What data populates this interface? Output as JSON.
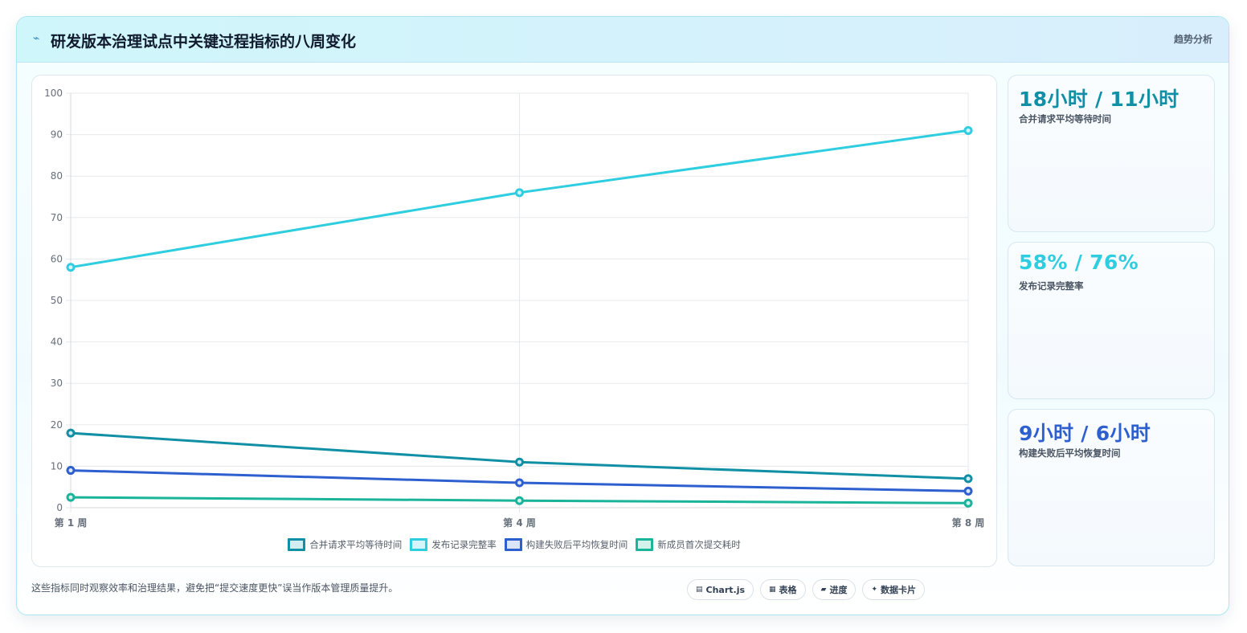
{
  "header": {
    "icon": "lightning-icon",
    "title": "研发版本治理试点中关键过程指标的八周变化",
    "tag": "趋势分析"
  },
  "chart_data": {
    "type": "line",
    "title": "",
    "xlabel": "",
    "ylabel": "",
    "categories": [
      "第 1 周",
      "第 4 周",
      "第 8 周"
    ],
    "ylim": [
      0,
      100
    ],
    "yticks": [
      0,
      10,
      20,
      30,
      40,
      50,
      60,
      70,
      80,
      90,
      100
    ],
    "grid": true,
    "legend_position": "bottom",
    "series": [
      {
        "name": "合并请求平均等待时间",
        "values": [
          18,
          11,
          7
        ],
        "color": "#1190a5",
        "fill": "#d1eef3"
      },
      {
        "name": "发布记录完整率",
        "values": [
          58,
          76,
          91
        ],
        "color": "#2ecde0",
        "fill": "#d4f6fa"
      },
      {
        "name": "构建失败后平均恢复时间",
        "values": [
          9,
          6,
          4
        ],
        "color": "#2d5fcf",
        "fill": "#dbe5fa"
      },
      {
        "name": "新成员首次提交耗时",
        "values": [
          2.5,
          1.7,
          1.1
        ],
        "color": "#1ab49b",
        "fill": "#d2f2ec"
      }
    ]
  },
  "stats": [
    {
      "value": "18小时 / 11小时",
      "label": "合并请求平均等待时间",
      "color": "#1190a5"
    },
    {
      "value": "58% / 76%",
      "label": "发布记录完整率",
      "color": "#2ecde0"
    },
    {
      "value": "9小时 / 6小时",
      "label": "构建失败后平均恢复时间",
      "color": "#2d5fcf"
    }
  ],
  "footnote": "这些指标同时观察效率和治理结果，避免把“提交速度更快”误当作版本管理质量提升。",
  "pills": [
    {
      "icon": "chart-icon",
      "glyph": "▤",
      "label": "Chart.js"
    },
    {
      "icon": "table-icon",
      "glyph": "▦",
      "label": "表格"
    },
    {
      "icon": "progress-icon",
      "glyph": "▰",
      "label": "进度"
    },
    {
      "icon": "data-card-icon",
      "glyph": "✦",
      "label": "数据卡片"
    }
  ]
}
